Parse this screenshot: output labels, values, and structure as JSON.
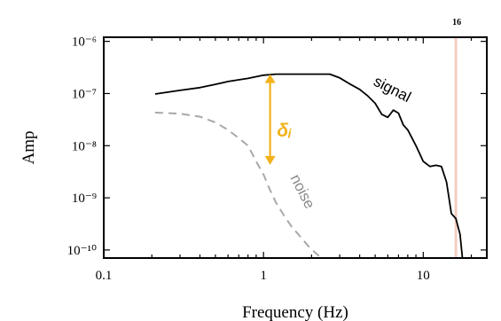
{
  "chart_data": {
    "type": "line",
    "xlabel": "Frequency (Hz)",
    "ylabel": "Amp",
    "x_scale": "log",
    "y_scale": "log",
    "xlim": [
      0.1,
      25
    ],
    "ylim": [
      7e-11,
      1.2e-06
    ],
    "x_ticks": [
      {
        "value": 0.1,
        "label": "0.1"
      },
      {
        "value": 1,
        "label": "1"
      },
      {
        "value": 10,
        "label": "10"
      }
    ],
    "y_ticks": [
      {
        "value": 1e-10,
        "label": "10⁻¹⁰"
      },
      {
        "value": 1e-09,
        "label": "10⁻⁹"
      },
      {
        "value": 1e-08,
        "label": "10⁻⁸"
      },
      {
        "value": 1e-07,
        "label": "10⁻⁷"
      },
      {
        "value": 1e-06,
        "label": "10⁻⁶"
      }
    ],
    "series": [
      {
        "name": "signal",
        "color": "#000000",
        "style": "solid",
        "x": [
          0.21,
          0.3,
          0.4,
          0.5,
          0.6,
          0.8,
          1.0,
          1.2,
          1.5,
          2.0,
          2.6,
          3.0,
          3.5,
          4.0,
          4.5,
          5.0,
          5.5,
          6.0,
          6.5,
          7.0,
          7.5,
          8.0,
          9.0,
          10.0,
          11.0,
          12.0,
          13.0,
          14.0,
          15.0,
          16.0,
          17.0,
          17.6
        ],
        "y": [
          9.8e-08,
          1.15e-07,
          1.3e-07,
          1.5e-07,
          1.7e-07,
          1.95e-07,
          2.25e-07,
          2.35e-07,
          2.35e-07,
          2.35e-07,
          2.35e-07,
          2e-07,
          1.5e-07,
          1.2e-07,
          9e-08,
          6.5e-08,
          4e-08,
          3.5e-08,
          4.8e-08,
          4.2e-08,
          2.5e-08,
          2e-08,
          1e-08,
          5e-09,
          4e-09,
          4.2e-09,
          4e-09,
          2e-09,
          5e-10,
          4e-10,
          2e-10,
          7e-11
        ]
      },
      {
        "name": "noise",
        "color": "#a8a8a8",
        "style": "dashed",
        "x": [
          0.21,
          0.3,
          0.4,
          0.5,
          0.6,
          0.7,
          0.8,
          0.9,
          1.0,
          1.1,
          1.2,
          1.35,
          1.5,
          1.7,
          1.9,
          2.1,
          2.3
        ],
        "y": [
          4.3e-08,
          4.1e-08,
          3.6e-08,
          2.8e-08,
          2e-08,
          1.4e-08,
          1e-08,
          5e-09,
          2.8e-09,
          1.4e-09,
          8e-10,
          4.5e-10,
          2.8e-10,
          1.8e-10,
          1.2e-10,
          9e-11,
          7e-11
        ]
      }
    ],
    "annotations": [
      {
        "text": "signal",
        "x": 6.2,
        "y": 1e-07,
        "rotation": 27,
        "role": "series-label-signal"
      },
      {
        "text": "noise",
        "x": 1.65,
        "y": 1.2e-09,
        "rotation": 63,
        "role": "series-label-noise"
      },
      {
        "text": "δᵢ",
        "x": 1.35,
        "y": 1.5e-08,
        "role": "delta-label",
        "color": "#f2b21a"
      }
    ],
    "arrow": {
      "x": 1.1,
      "y_top": 2.35e-07,
      "y_bottom": 4.3e-09,
      "color": "#f2b21a"
    },
    "vline": {
      "x": 16,
      "color": "#f4cdc2",
      "label": "16"
    },
    "grid": false,
    "legend": "none"
  }
}
